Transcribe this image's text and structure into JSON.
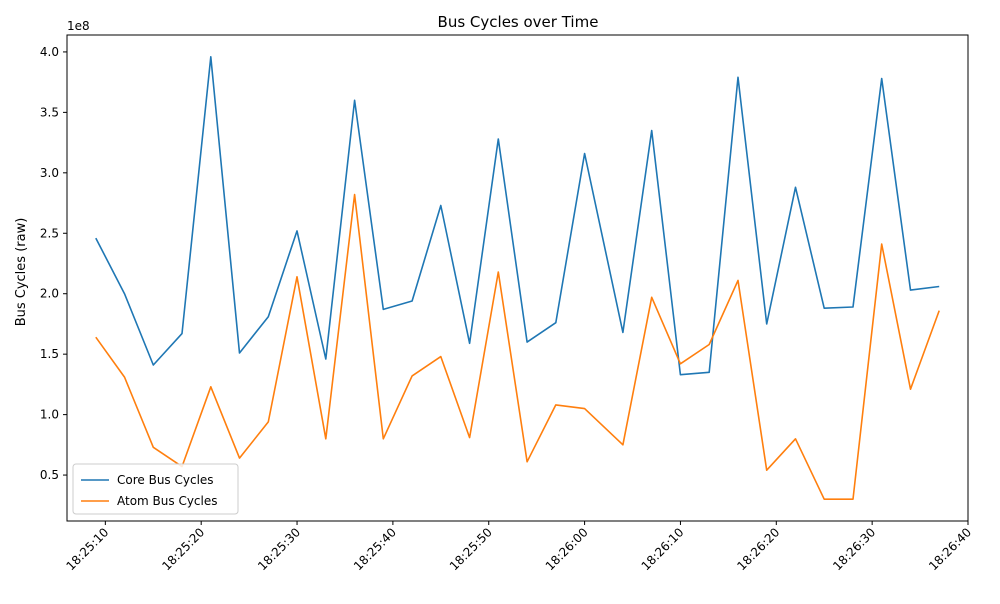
{
  "chart_data": {
    "type": "line",
    "title": "Bus Cycles over Time",
    "xlabel": "",
    "ylabel": "Bus Cycles (raw)",
    "y_offset_label": "1e8",
    "x": [
      "18:25:09",
      "18:25:12",
      "18:25:15",
      "18:25:18",
      "18:25:21",
      "18:25:24",
      "18:25:27",
      "18:25:30",
      "18:25:33",
      "18:25:36",
      "18:25:39",
      "18:25:42",
      "18:25:45",
      "18:25:48",
      "18:25:51",
      "18:25:54",
      "18:25:57",
      "18:26:00",
      "18:26:04",
      "18:26:07",
      "18:26:10",
      "18:26:13",
      "18:26:16",
      "18:26:19",
      "18:26:22",
      "18:26:25",
      "18:26:28",
      "18:26:31",
      "18:26:34",
      "18:26:37"
    ],
    "series": [
      {
        "name": "Core Bus Cycles",
        "color": "#1f77b4",
        "values": [
          246000000,
          200000000,
          141000000,
          167000000,
          396000000,
          151000000,
          181000000,
          252000000,
          146000000,
          360000000,
          187000000,
          194000000,
          273000000,
          159000000,
          328000000,
          160000000,
          176000000,
          316000000,
          168000000,
          335000000,
          133000000,
          135000000,
          379000000,
          175000000,
          288000000,
          188000000,
          189000000,
          378000000,
          203000000,
          206000000
        ]
      },
      {
        "name": "Atom Bus Cycles",
        "color": "#ff7f0e",
        "values": [
          164000000,
          131000000,
          73000000,
          57000000,
          123000000,
          64000000,
          94000000,
          214000000,
          80000000,
          282000000,
          80000000,
          132000000,
          148000000,
          81000000,
          218000000,
          61000000,
          108000000,
          105000000,
          75000000,
          197000000,
          142000000,
          158000000,
          211000000,
          54000000,
          80000000,
          30000000,
          30000000,
          241000000,
          121000000,
          186000000
        ]
      }
    ],
    "x_range": [
      "18:25:06",
      "18:26:40"
    ],
    "x_ticks": [
      "18:25:10",
      "18:25:20",
      "18:25:30",
      "18:25:40",
      "18:25:50",
      "18:26:00",
      "18:26:10",
      "18:26:20",
      "18:26:30",
      "18:26:40"
    ],
    "ylim": [
      12000000,
      414000000
    ],
    "y_ticks": [
      50000000,
      100000000,
      150000000,
      200000000,
      250000000,
      300000000,
      350000000,
      400000000
    ],
    "y_tick_labels": [
      "0.5",
      "1.0",
      "1.5",
      "2.0",
      "2.5",
      "3.0",
      "3.5",
      "4.0"
    ],
    "grid": false,
    "legend_position": "lower-left"
  }
}
